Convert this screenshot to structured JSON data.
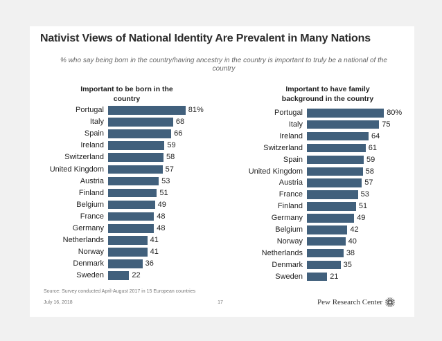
{
  "slide": {
    "title": "Nativist Views of National Identity Are Prevalent in Many Nations",
    "subtitle": "% who say being born in the country/having ancestry in the country is important to truly be a national of the country",
    "source": "Source: Survey conducted April-August 2017 in 15 European countries",
    "date": "July 16, 2018",
    "page_number": "17",
    "logo": "Pew Research Center"
  },
  "colors": {
    "bar": "#41607c",
    "text": "#222222",
    "background": "#f1f1f1"
  },
  "chart_data": [
    {
      "type": "bar",
      "orientation": "horizontal",
      "title": "Important to be born in the country",
      "categories": [
        "Portugal",
        "Italy",
        "Spain",
        "Ireland",
        "Switzerland",
        "United Kingdom",
        "Austria",
        "Finland",
        "Belgium",
        "France",
        "Germany",
        "Netherlands",
        "Norway",
        "Denmark",
        "Sweden"
      ],
      "values": [
        81,
        68,
        66,
        59,
        58,
        57,
        53,
        51,
        49,
        48,
        48,
        41,
        41,
        36,
        22
      ],
      "value_labels": [
        "81%",
        "68",
        "66",
        "59",
        "58",
        "57",
        "53",
        "51",
        "49",
        "48",
        "48",
        "41",
        "41",
        "36",
        "22"
      ],
      "xlim": [
        0,
        100
      ]
    },
    {
      "type": "bar",
      "orientation": "horizontal",
      "title": "Important to have family background in the country",
      "categories": [
        "Portugal",
        "Italy",
        "Ireland",
        "Switzerland",
        "Spain",
        "United Kingdom",
        "Austria",
        "France",
        "Finland",
        "Germany",
        "Belgium",
        "Norway",
        "Netherlands",
        "Denmark",
        "Sweden"
      ],
      "values": [
        80,
        75,
        64,
        61,
        59,
        58,
        57,
        53,
        51,
        49,
        42,
        40,
        38,
        35,
        21
      ],
      "value_labels": [
        "80%",
        "75",
        "64",
        "61",
        "59",
        "58",
        "57",
        "53",
        "51",
        "49",
        "42",
        "40",
        "38",
        "35",
        "21"
      ],
      "xlim": [
        0,
        100
      ]
    }
  ]
}
